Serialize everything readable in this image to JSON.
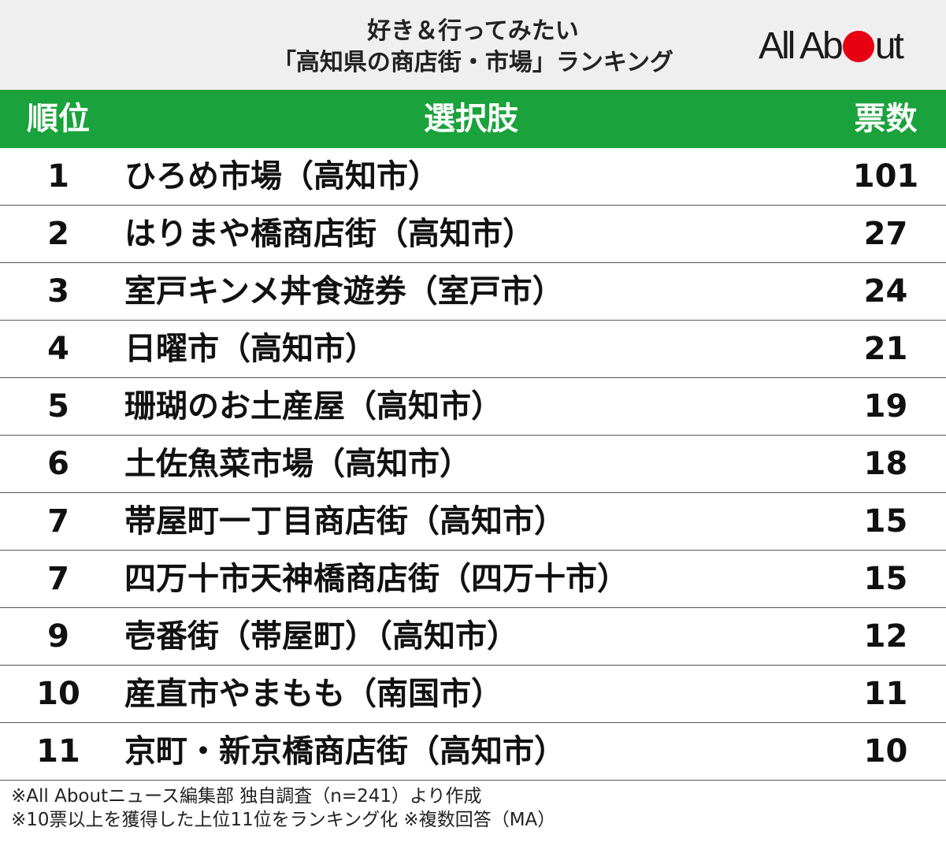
{
  "title": {
    "line1": "好き＆行ってみたい",
    "line2": "「高知県の商店街・市場」ランキング"
  },
  "logo": {
    "text_before": "All Ab",
    "text_after": "ut",
    "dot_color": "#e60012"
  },
  "colors": {
    "header_bg": "#1aa23c",
    "title_bg": "#efefef"
  },
  "chart_data": {
    "type": "table",
    "columns": [
      "順位",
      "選択肢",
      "票数"
    ],
    "rows": [
      {
        "rank": "1",
        "name": "ひろめ市場（高知市）",
        "votes": 101
      },
      {
        "rank": "2",
        "name": "はりまや橋商店街（高知市）",
        "votes": 27
      },
      {
        "rank": "3",
        "name": "室戸キンメ丼食遊券（室戸市）",
        "votes": 24
      },
      {
        "rank": "4",
        "name": "日曜市（高知市）",
        "votes": 21
      },
      {
        "rank": "5",
        "name": "珊瑚のお土産屋（高知市）",
        "votes": 19
      },
      {
        "rank": "6",
        "name": "土佐魚菜市場（高知市）",
        "votes": 18
      },
      {
        "rank": "7",
        "name": "帯屋町一丁目商店街（高知市）",
        "votes": 15
      },
      {
        "rank": "7",
        "name": "四万十市天神橋商店街（四万十市）",
        "votes": 15
      },
      {
        "rank": "9",
        "name": "壱番街（帯屋町）（高知市）",
        "votes": 12
      },
      {
        "rank": "10",
        "name": "産直市やまもも（南国市）",
        "votes": 11
      },
      {
        "rank": "11",
        "name": "京町・新京橋商店街（高知市）",
        "votes": 10
      }
    ]
  },
  "notes": {
    "line1": "※All Aboutニュース編集部 独自調査（n=241）より作成",
    "line2": "※10票以上を獲得した上位11位をランキング化 ※複数回答（MA）"
  }
}
